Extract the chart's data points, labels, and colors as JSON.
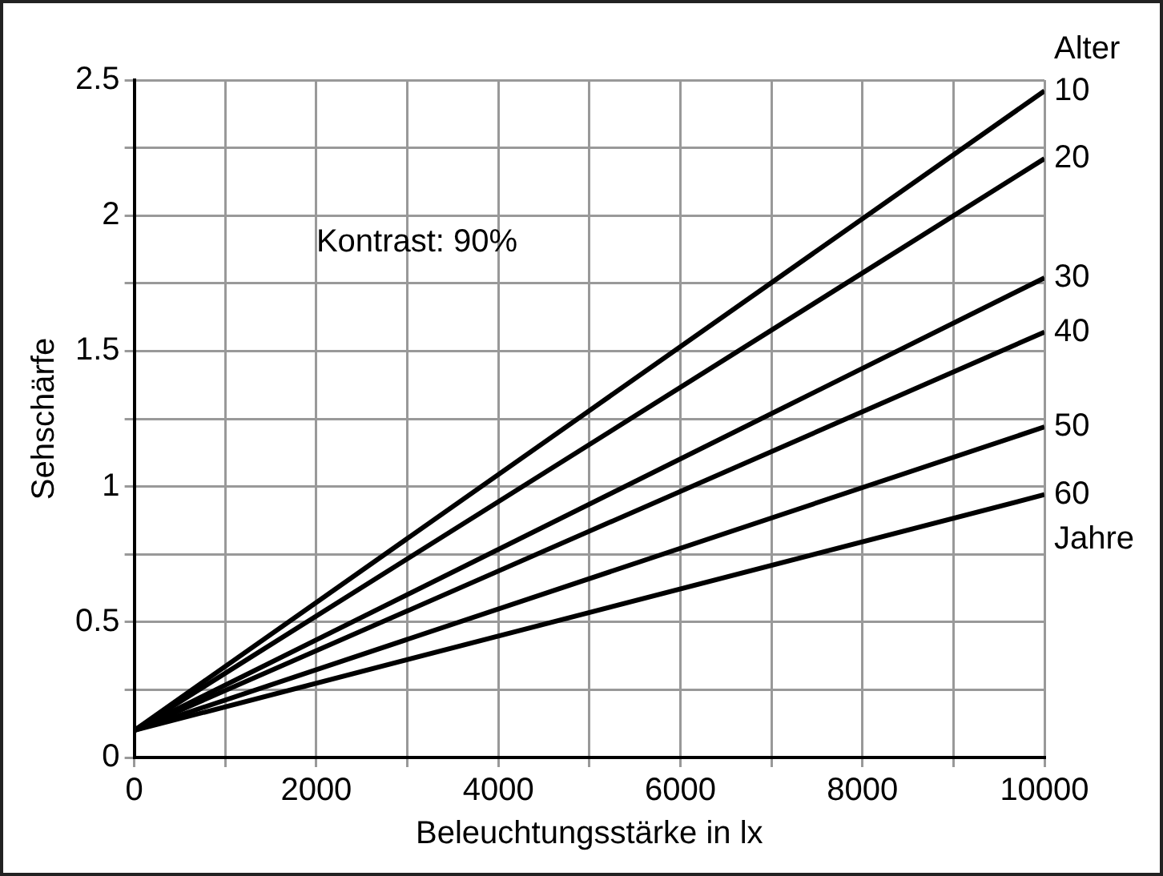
{
  "chart_data": {
    "type": "line",
    "xlabel": "Beleuchtungsstärke in lx",
    "ylabel": "Sehschärfe",
    "legend_title": "Alter",
    "annotations": [
      "Kontrast: 90%",
      "Jahre"
    ],
    "x": [
      0,
      10000
    ],
    "series": [
      {
        "name": "10",
        "color": "#000000",
        "values": [
          0.1,
          2.46
        ]
      },
      {
        "name": "20",
        "color": "#000000",
        "values": [
          0.1,
          2.21
        ]
      },
      {
        "name": "30",
        "color": "#000000",
        "values": [
          0.1,
          1.77
        ]
      },
      {
        "name": "40",
        "color": "#000000",
        "values": [
          0.1,
          1.57
        ]
      },
      {
        "name": "50",
        "color": "#000000",
        "values": [
          0.1,
          1.22
        ]
      },
      {
        "name": "60",
        "color": "#000000",
        "values": [
          0.1,
          0.97
        ]
      }
    ],
    "xlim": [
      0,
      10000
    ],
    "xticks": [
      0,
      {
        "value": 1000,
        "label": null
      },
      2000,
      {
        "value": 3000,
        "label": null
      },
      4000,
      {
        "value": 5000,
        "label": null
      },
      6000,
      {
        "value": 7000,
        "label": null
      },
      8000,
      {
        "value": 9000,
        "label": null
      },
      10000
    ],
    "ylim": [
      0,
      2.5
    ],
    "yticks": [
      0,
      {
        "value": 0.25,
        "label": null
      },
      0.5,
      {
        "value": 0.75,
        "label": null
      },
      1,
      {
        "value": 1.25,
        "label": null
      },
      1.5,
      {
        "value": 1.75,
        "label": null
      },
      2,
      {
        "value": 2.25,
        "label": null
      },
      2.5
    ],
    "grid": true,
    "legend": false,
    "marker": "none",
    "line_style": "solid"
  }
}
